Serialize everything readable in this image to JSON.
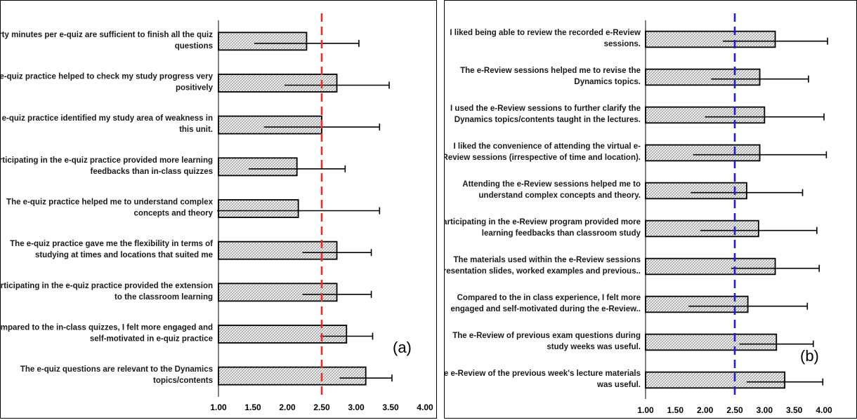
{
  "chart_data": [
    {
      "type": "bar",
      "orientation": "horizontal",
      "panel_label": "(a)",
      "categories": [
        [
          "Thirty minutes per e-quiz are sufficient to finish all the quiz",
          "questions"
        ],
        [
          "The e-quiz practice helped to check my study progress very",
          "positively"
        ],
        [
          "The e-quiz practice identified my study area of weakness in",
          "this unit."
        ],
        [
          "Participating in the e-quiz practice provided more learning",
          "feedbacks than in-class quizzes"
        ],
        [
          "The e-quiz practice helped me to understand complex",
          "concepts and theory"
        ],
        [
          "The e-quiz practice gave me the flexibility in terms of",
          "studying at times and locations that suited me"
        ],
        [
          "Participating in the e-quiz practice provided the extension",
          "to the classroom learning"
        ],
        [
          "Compared to the in-class quizzes, I felt more engaged and",
          "self-motivated in e-quiz practice"
        ],
        [
          "The e-quiz questions are relevant to the Dynamics",
          "topics/contents"
        ]
      ],
      "values": [
        2.28,
        2.72,
        2.5,
        2.14,
        2.16,
        2.72,
        2.72,
        2.86,
        3.14
      ],
      "error": [
        0.76,
        0.76,
        0.84,
        0.7,
        1.18,
        0.5,
        0.5,
        0.38,
        0.38
      ],
      "xlim": [
        1.0,
        4.0
      ],
      "xticks": [
        "1.00",
        "1.50",
        "2.00",
        "2.50",
        "3.00",
        "3.50",
        "4.00"
      ],
      "reference_line": {
        "value": 2.5,
        "color": "#e8302a",
        "style": "dashed"
      },
      "bar_fill": "#e4e4e4",
      "bar_stroke": "#000000"
    },
    {
      "type": "bar",
      "orientation": "horizontal",
      "panel_label": "(b)",
      "categories": [
        [
          "I liked being able to review the recorded e-Review",
          "sessions."
        ],
        [
          "The e-Review sessions helped me to revise the",
          "Dynamics topics."
        ],
        [
          "I used the e-Review sessions to further clarify the",
          "Dynamics topics/contents taught in the lectures."
        ],
        [
          "I liked the convenience of attending the virtual e-",
          "Review sessions (irrespective of time and location)."
        ],
        [
          "Attending the e-Review sessions helped me to",
          "understand complex concepts and theory."
        ],
        [
          "Participating in the e-Review program provided more",
          "learning feedbacks than classroom study"
        ],
        [
          "The materials used within the e-Review sessions",
          "(presentation slides, worked examples and previous.."
        ],
        [
          "Compared to the in class experience, I felt more",
          "engaged and self-motivated during the e-Review.."
        ],
        [
          "The e-Review of previous exam questions during",
          "study weeks was useful."
        ],
        [
          "The e-Review of the previous week's lecture materials",
          "was useful."
        ]
      ],
      "values": [
        3.18,
        2.92,
        3.0,
        2.92,
        2.7,
        2.9,
        3.18,
        2.72,
        3.2,
        3.34
      ],
      "error": [
        0.88,
        0.82,
        1.0,
        1.12,
        0.94,
        0.98,
        0.74,
        1.0,
        0.62,
        0.64
      ],
      "xlim": [
        1.0,
        4.0
      ],
      "xticks": [
        "1.00",
        "1.50",
        "2.00",
        "2.50",
        "3.00",
        "3.50",
        "4.00"
      ],
      "reference_line": {
        "value": 2.5,
        "color": "#1f1fd6",
        "style": "dashed"
      },
      "bar_fill": "#e4e4e4",
      "bar_stroke": "#000000"
    }
  ]
}
